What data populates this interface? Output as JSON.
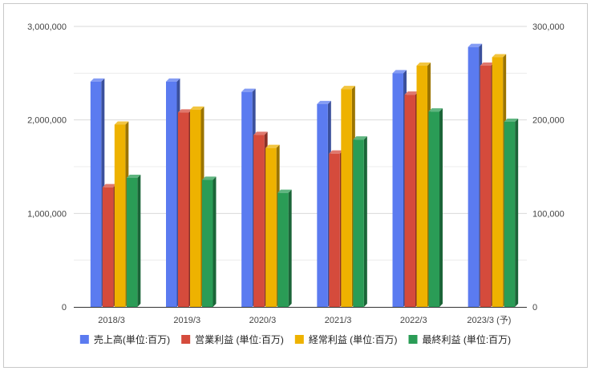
{
  "chart_data": {
    "type": "bar",
    "style": "3d-grouped",
    "categories": [
      "2018/3",
      "2019/3",
      "2020/3",
      "2021/3",
      "2022/3",
      "2023/3 (予)"
    ],
    "series": [
      {
        "name": "売上高(単位:百万)",
        "axis": "left",
        "color": "#5b7bf0",
        "values": [
          2410000,
          2410000,
          2300000,
          2170000,
          2500000,
          2780000
        ]
      },
      {
        "name": "営業利益 (単位:百万)",
        "axis": "right",
        "color": "#d54b3c",
        "values": [
          128000,
          208000,
          184000,
          164000,
          227000,
          258000
        ]
      },
      {
        "name": "経常利益 (単位:百万)",
        "axis": "right",
        "color": "#eeb200",
        "values": [
          195000,
          211000,
          170000,
          233000,
          258000,
          267000
        ]
      },
      {
        "name": "最終利益 (単位:百万)",
        "axis": "right",
        "color": "#2a9c56",
        "values": [
          138000,
          136000,
          122000,
          179000,
          209000,
          198000
        ]
      }
    ],
    "y_left": {
      "min": 0,
      "max": 3000000,
      "ticks": [
        "0",
        "1,000,000",
        "2,000,000",
        "3,000,000"
      ]
    },
    "y_right": {
      "min": 0,
      "max": 300000,
      "ticks": [
        "0",
        "100,000",
        "200,000",
        "300,000"
      ]
    },
    "grid": true,
    "legend": "bottom"
  }
}
